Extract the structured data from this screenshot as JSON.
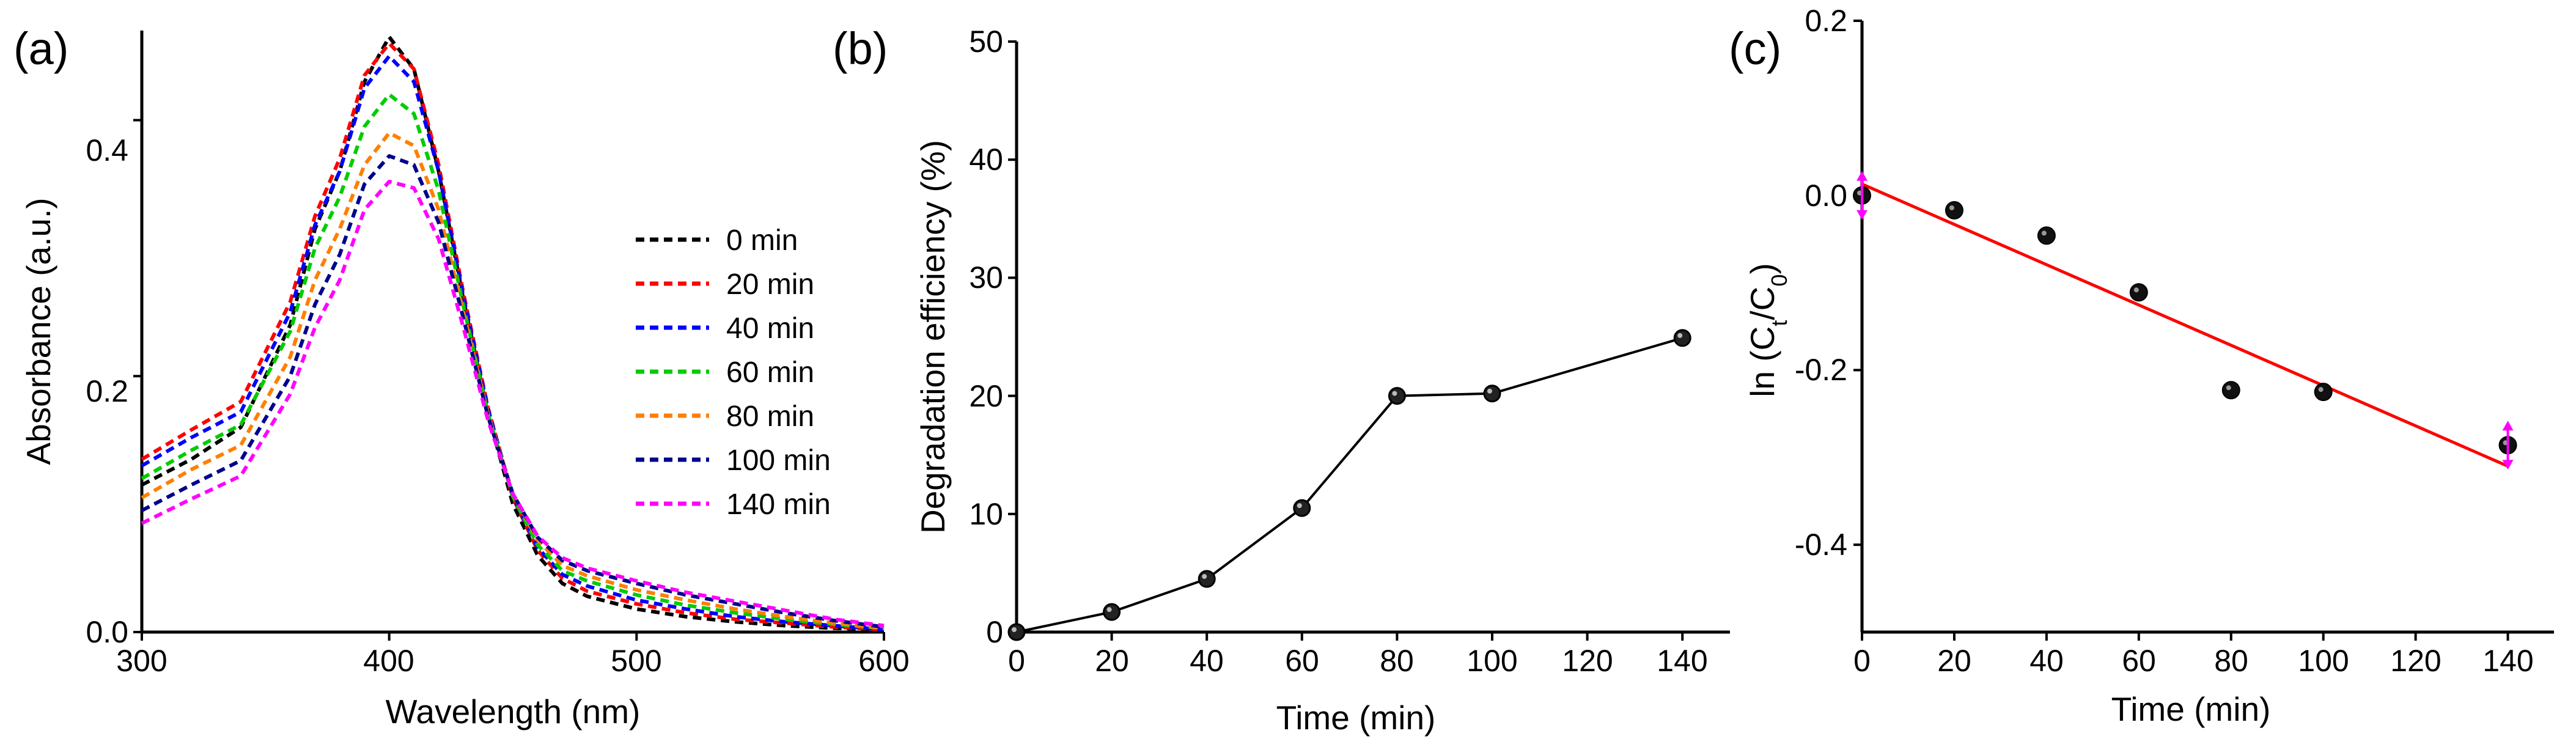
{
  "chart_data": [
    {
      "panel_label": "(a)",
      "type": "line",
      "xlabel": "Wavelength (nm)",
      "ylabel": "Absorbance (a.u.)",
      "xlim": [
        300,
        600
      ],
      "ylim": [
        0,
        0.47
      ],
      "xticks": [
        "300",
        "400",
        "500",
        "600"
      ],
      "yticks": [
        "0.0",
        "0.2",
        "0.4"
      ],
      "xtick_values": [
        300,
        400,
        500,
        600
      ],
      "ytick_values": [
        0.0,
        0.2,
        0.4
      ],
      "legend_position": "right",
      "line_style": "dashed",
      "x": [
        300,
        320,
        340,
        360,
        370,
        380,
        390,
        400,
        410,
        420,
        430,
        440,
        450,
        460,
        470,
        480,
        500,
        520,
        540,
        560,
        580,
        600
      ],
      "series": [
        {
          "name": "0 min",
          "color": "#000000",
          "values": [
            0.115,
            0.135,
            0.16,
            0.24,
            0.315,
            0.36,
            0.43,
            0.465,
            0.44,
            0.36,
            0.26,
            0.17,
            0.1,
            0.06,
            0.038,
            0.028,
            0.018,
            0.012,
            0.008,
            0.005,
            0.003,
            0.002
          ]
        },
        {
          "name": "20 min",
          "color": "#ff0000",
          "values": [
            0.135,
            0.158,
            0.18,
            0.258,
            0.325,
            0.37,
            0.435,
            0.46,
            0.44,
            0.365,
            0.265,
            0.175,
            0.105,
            0.064,
            0.042,
            0.032,
            0.022,
            0.015,
            0.01,
            0.007,
            0.004,
            0.002
          ]
        },
        {
          "name": "40 min",
          "color": "#0000ff",
          "values": [
            0.13,
            0.152,
            0.172,
            0.25,
            0.318,
            0.36,
            0.425,
            0.45,
            0.43,
            0.36,
            0.262,
            0.174,
            0.106,
            0.066,
            0.045,
            0.036,
            0.025,
            0.018,
            0.012,
            0.008,
            0.005,
            0.002
          ]
        },
        {
          "name": "60 min",
          "color": "#00cc00",
          "values": [
            0.12,
            0.142,
            0.162,
            0.235,
            0.3,
            0.34,
            0.395,
            0.42,
            0.405,
            0.345,
            0.255,
            0.17,
            0.106,
            0.068,
            0.048,
            0.04,
            0.029,
            0.021,
            0.015,
            0.01,
            0.006,
            0.003
          ]
        },
        {
          "name": "80 min",
          "color": "#ff7f00",
          "values": [
            0.105,
            0.127,
            0.146,
            0.215,
            0.275,
            0.315,
            0.365,
            0.39,
            0.38,
            0.33,
            0.25,
            0.17,
            0.108,
            0.072,
            0.052,
            0.044,
            0.033,
            0.025,
            0.018,
            0.012,
            0.007,
            0.003
          ]
        },
        {
          "name": "100 min",
          "color": "#00008b",
          "values": [
            0.095,
            0.115,
            0.134,
            0.2,
            0.256,
            0.295,
            0.35,
            0.372,
            0.365,
            0.32,
            0.245,
            0.168,
            0.108,
            0.074,
            0.056,
            0.048,
            0.038,
            0.029,
            0.022,
            0.015,
            0.009,
            0.004
          ]
        },
        {
          "name": "140 min",
          "color": "#ff00ff",
          "values": [
            0.085,
            0.104,
            0.122,
            0.186,
            0.238,
            0.275,
            0.33,
            0.352,
            0.347,
            0.307,
            0.238,
            0.165,
            0.108,
            0.075,
            0.058,
            0.05,
            0.04,
            0.031,
            0.024,
            0.017,
            0.01,
            0.005
          ]
        }
      ]
    },
    {
      "panel_label": "(b)",
      "type": "line",
      "xlabel": "Time (min)",
      "ylabel": "Degradation efficiency (%)",
      "xlim": [
        0,
        150
      ],
      "ylim": [
        0,
        50
      ],
      "xticks": [
        "0",
        "20",
        "40",
        "60",
        "80",
        "100",
        "120",
        "140"
      ],
      "yticks": [
        "0",
        "10",
        "20",
        "30",
        "40",
        "50"
      ],
      "xtick_values": [
        0,
        20,
        40,
        60,
        80,
        100,
        120,
        140
      ],
      "ytick_values": [
        0,
        10,
        20,
        30,
        40,
        50
      ],
      "series": [
        {
          "name": "Degradation efficiency",
          "color": "#000000",
          "x": [
            0,
            20,
            40,
            60,
            80,
            100,
            140
          ],
          "values": [
            0,
            1.7,
            4.5,
            10.5,
            20,
            20.2,
            24.9
          ]
        }
      ]
    },
    {
      "panel_label": "(c)",
      "type": "scatter",
      "xlabel": "Time (min)",
      "ylabel_main": "ln (C",
      "ylabel_sub1": "t",
      "ylabel_mid": "/C",
      "ylabel_sub2": "0",
      "ylabel_end": ")",
      "xlim": [
        0,
        150
      ],
      "ylim": [
        -0.5,
        0.2
      ],
      "xticks": [
        "0",
        "20",
        "40",
        "60",
        "80",
        "100",
        "120",
        "140"
      ],
      "yticks": [
        "0.2",
        "0.0",
        "-0.2",
        "-0.4"
      ],
      "xtick_values": [
        0,
        20,
        40,
        60,
        80,
        100,
        120,
        140
      ],
      "ytick_values": [
        0.2,
        0.0,
        -0.2,
        -0.4
      ],
      "series": [
        {
          "name": "ln(Ct/C0)",
          "color": "#000000",
          "x": [
            0,
            20,
            40,
            60,
            80,
            100,
            140
          ],
          "values": [
            0,
            -0.017,
            -0.046,
            -0.111,
            -0.223,
            -0.225,
            -0.286
          ]
        }
      ],
      "fit": {
        "color": "#ff0000",
        "x": [
          0,
          140
        ],
        "values": [
          0.013,
          -0.31
        ]
      },
      "error_markers_color": "#ff00ff"
    }
  ]
}
